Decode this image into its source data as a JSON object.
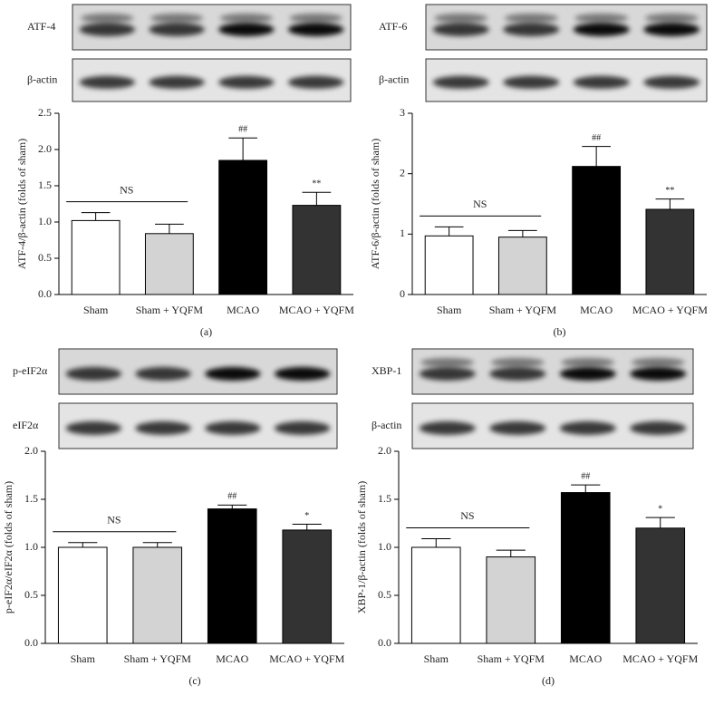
{
  "chart_data": [
    {
      "type": "bar",
      "panel_label": "(a)",
      "blot_labels": [
        "ATF-4",
        "β-actin"
      ],
      "ylabel": "ATF-4/β-actin (folds of sham)",
      "categories": [
        "Sham",
        "Sham + YQFM",
        "MCAO",
        "MCAO + YQFM"
      ],
      "values": [
        1.02,
        0.84,
        1.85,
        1.23
      ],
      "errors": [
        0.11,
        0.13,
        0.31,
        0.18
      ],
      "colors": [
        "#ffffff",
        "#d3d3d3",
        "#000000",
        "#333333"
      ],
      "significance": [
        null,
        null,
        "##",
        "**"
      ],
      "ns_label": "NS",
      "ylim": [
        0,
        2.5
      ],
      "yticks": [
        {
          "value": 0,
          "label": "0.0"
        },
        0.5,
        {
          "value": 1,
          "label": "1.0"
        },
        1.5,
        {
          "value": 2,
          "label": "2.0"
        },
        2.5
      ]
    },
    {
      "type": "bar",
      "panel_label": "(b)",
      "blot_labels": [
        "ATF-6",
        "β-actin"
      ],
      "ylabel": "ATF-6/β-actin (folds of sham)",
      "categories": [
        "Sham",
        "Sham + YQFM",
        "MCAO",
        "MCAO + YQFM"
      ],
      "values": [
        0.97,
        0.95,
        2.12,
        1.41
      ],
      "errors": [
        0.15,
        0.11,
        0.33,
        0.17
      ],
      "colors": [
        "#ffffff",
        "#d3d3d3",
        "#000000",
        "#333333"
      ],
      "significance": [
        null,
        null,
        "##",
        "**"
      ],
      "ns_label": "NS",
      "ylim": [
        0,
        3
      ],
      "yticks": [
        0,
        1,
        2,
        3
      ]
    },
    {
      "type": "bar",
      "panel_label": "(c)",
      "blot_labels": [
        "p-eIF2α",
        "eIF2α"
      ],
      "ylabel": "p-eIF2α/eIF2α (folds of sham)",
      "categories": [
        "Sham",
        "Sham + YQFM",
        "MCAO",
        "MCAO + YQFM"
      ],
      "values": [
        1.0,
        1.0,
        1.4,
        1.18
      ],
      "errors": [
        0.05,
        0.05,
        0.04,
        0.06
      ],
      "colors": [
        "#ffffff",
        "#d3d3d3",
        "#000000",
        "#333333"
      ],
      "significance": [
        null,
        null,
        "##",
        "*"
      ],
      "ns_label": "NS",
      "ylim": [
        0,
        2
      ],
      "yticks": [
        {
          "value": 0,
          "label": "0.0"
        },
        0.5,
        {
          "value": 1,
          "label": "1.0"
        },
        1.5,
        {
          "value": 2,
          "label": "2.0"
        }
      ]
    },
    {
      "type": "bar",
      "panel_label": "(d)",
      "blot_labels": [
        "XBP-1",
        "β-actin"
      ],
      "ylabel": "XBP-1/β-actin (folds of sham)",
      "categories": [
        "Sham",
        "Sham + YQFM",
        "MCAO",
        "MCAO + YQFM"
      ],
      "values": [
        1.0,
        0.9,
        1.57,
        1.2
      ],
      "errors": [
        0.09,
        0.07,
        0.08,
        0.11
      ],
      "colors": [
        "#ffffff",
        "#d3d3d3",
        "#000000",
        "#333333"
      ],
      "significance": [
        null,
        null,
        "##",
        "*"
      ],
      "ns_label": "NS",
      "ylim": [
        0,
        2
      ],
      "yticks": [
        {
          "value": 0,
          "label": "0.0"
        },
        0.5,
        {
          "value": 1,
          "label": "1.0"
        },
        1.5,
        {
          "value": 2,
          "label": "2.0"
        }
      ]
    }
  ]
}
